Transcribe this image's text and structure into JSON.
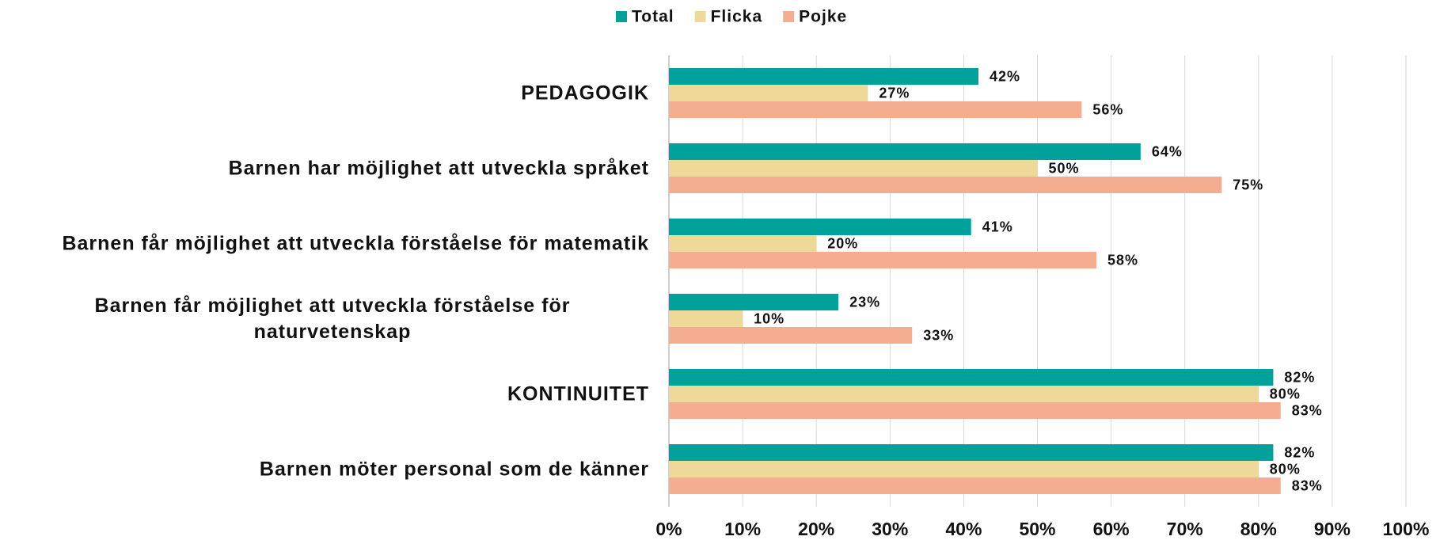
{
  "chart_data": {
    "type": "bar",
    "orientation": "horizontal",
    "categories": [
      "PEDAGOGIK",
      "Barnen har möjlighet att utveckla språket",
      "Barnen får möjlighet att utveckla förståelse för matematik",
      "Barnen får möjlighet att utveckla förståelse för naturvetenskap",
      "KONTINUITET",
      "Barnen möter personal som de känner"
    ],
    "series": [
      {
        "name": "Total",
        "color": "#00a19a",
        "values": [
          42,
          64,
          41,
          23,
          82,
          82
        ],
        "value_labels": [
          "42%",
          "64%",
          "41%",
          "23%",
          "82%",
          "82%"
        ]
      },
      {
        "name": "Flicka",
        "color": "#eed999",
        "values": [
          27,
          50,
          20,
          10,
          80,
          80
        ],
        "value_labels": [
          "27%",
          "50%",
          "20%",
          "10%",
          "80%",
          "80%"
        ]
      },
      {
        "name": "Pojke",
        "color": "#f5ad91",
        "values": [
          56,
          75,
          58,
          33,
          83,
          83
        ],
        "value_labels": [
          "56%",
          "75%",
          "58%",
          "33%",
          "83%",
          "83%"
        ]
      }
    ],
    "xlim": [
      0,
      100
    ],
    "xticks": [
      {
        "value": 0,
        "label": "0%"
      },
      {
        "value": 10,
        "label": "10%"
      },
      {
        "value": 20,
        "label": "20%"
      },
      {
        "value": 30,
        "label": "30%"
      },
      {
        "value": 40,
        "label": "40%"
      },
      {
        "value": 50,
        "label": "50%"
      },
      {
        "value": 60,
        "label": "60%"
      },
      {
        "value": 70,
        "label": "70%"
      },
      {
        "value": 80,
        "label": "80%"
      },
      {
        "value": 90,
        "label": "90%"
      },
      {
        "value": 100,
        "label": "100%"
      }
    ],
    "grid": true,
    "legend": "top"
  }
}
